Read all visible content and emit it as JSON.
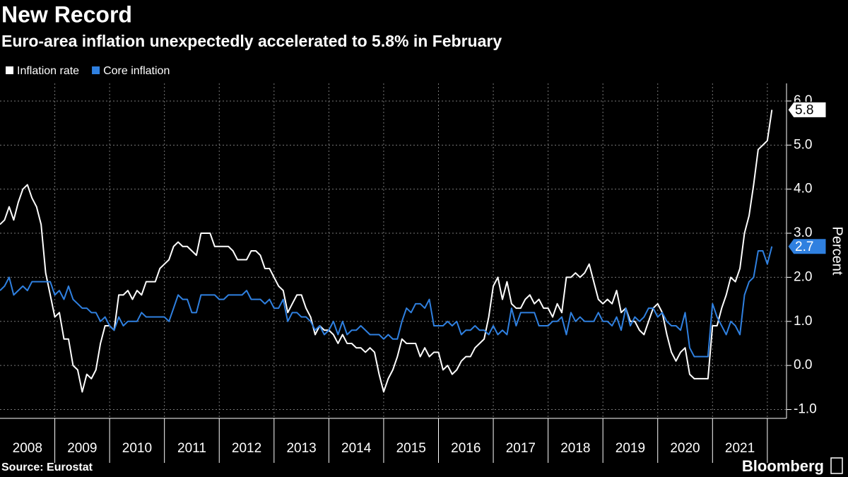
{
  "chart_data": {
    "type": "line",
    "title": "New Record",
    "subtitle": "Euro-area inflation unexpectedly accelerated to 5.8% in February",
    "source": "Source: Eurostat",
    "brand": "Bloomberg",
    "y_label": "Percent",
    "grid": true,
    "xlim": [
      2008.0,
      2022.35
    ],
    "ylim": [
      -1.2,
      6.4
    ],
    "xticks": [
      {
        "value": 2008.5,
        "label": "2008"
      },
      {
        "value": 2009.5,
        "label": "2009"
      },
      {
        "value": 2010.5,
        "label": "2010"
      },
      {
        "value": 2011.5,
        "label": "2011"
      },
      {
        "value": 2012.5,
        "label": "2012"
      },
      {
        "value": 2013.5,
        "label": "2013"
      },
      {
        "value": 2014.5,
        "label": "2014"
      },
      {
        "value": 2015.5,
        "label": "2015"
      },
      {
        "value": 2016.5,
        "label": "2016"
      },
      {
        "value": 2017.5,
        "label": "2017"
      },
      {
        "value": 2018.5,
        "label": "2018"
      },
      {
        "value": 2019.5,
        "label": "2019"
      },
      {
        "value": 2020.5,
        "label": "2020"
      },
      {
        "value": 2021.5,
        "label": "2021"
      }
    ],
    "yticks": [
      {
        "value": -1,
        "label": "-1.0"
      },
      {
        "value": 0,
        "label": "0.0"
      },
      {
        "value": 1,
        "label": "1.0"
      },
      {
        "value": 2,
        "label": "2.0"
      },
      {
        "value": 3,
        "label": "3.0"
      },
      {
        "value": 4,
        "label": "4.0"
      },
      {
        "value": 5,
        "label": "5.0"
      },
      {
        "value": 6,
        "label": "6.0"
      }
    ],
    "x": [
      2008,
      2008.083,
      2008.167,
      2008.25,
      2008.333,
      2008.417,
      2008.5,
      2008.583,
      2008.667,
      2008.75,
      2008.833,
      2008.917,
      2009,
      2009.083,
      2009.167,
      2009.25,
      2009.333,
      2009.417,
      2009.5,
      2009.583,
      2009.667,
      2009.75,
      2009.833,
      2009.917,
      2010,
      2010.083,
      2010.167,
      2010.25,
      2010.333,
      2010.417,
      2010.5,
      2010.583,
      2010.667,
      2010.75,
      2010.833,
      2010.917,
      2011,
      2011.083,
      2011.167,
      2011.25,
      2011.333,
      2011.417,
      2011.5,
      2011.583,
      2011.667,
      2011.75,
      2011.833,
      2011.917,
      2012,
      2012.083,
      2012.167,
      2012.25,
      2012.333,
      2012.417,
      2012.5,
      2012.583,
      2012.667,
      2012.75,
      2012.833,
      2012.917,
      2013,
      2013.083,
      2013.167,
      2013.25,
      2013.333,
      2013.417,
      2013.5,
      2013.583,
      2013.667,
      2013.75,
      2013.833,
      2013.917,
      2014,
      2014.083,
      2014.167,
      2014.25,
      2014.333,
      2014.417,
      2014.5,
      2014.583,
      2014.667,
      2014.75,
      2014.833,
      2014.917,
      2015,
      2015.083,
      2015.167,
      2015.25,
      2015.333,
      2015.417,
      2015.5,
      2015.583,
      2015.667,
      2015.75,
      2015.833,
      2015.917,
      2016,
      2016.083,
      2016.167,
      2016.25,
      2016.333,
      2016.417,
      2016.5,
      2016.583,
      2016.667,
      2016.75,
      2016.833,
      2016.917,
      2017,
      2017.083,
      2017.167,
      2017.25,
      2017.333,
      2017.417,
      2017.5,
      2017.583,
      2017.667,
      2017.75,
      2017.833,
      2017.917,
      2018,
      2018.083,
      2018.167,
      2018.25,
      2018.333,
      2018.417,
      2018.5,
      2018.583,
      2018.667,
      2018.75,
      2018.833,
      2018.917,
      2019,
      2019.083,
      2019.167,
      2019.25,
      2019.333,
      2019.417,
      2019.5,
      2019.583,
      2019.667,
      2019.75,
      2019.833,
      2019.917,
      2020,
      2020.083,
      2020.167,
      2020.25,
      2020.333,
      2020.417,
      2020.5,
      2020.583,
      2020.667,
      2020.75,
      2020.833,
      2020.917,
      2021,
      2021.083,
      2021.167,
      2021.25,
      2021.333,
      2021.417,
      2021.5,
      2021.583,
      2021.667,
      2021.75,
      2021.833,
      2021.917,
      2022,
      2022.083
    ],
    "series": [
      {
        "name": "Inflation rate",
        "color": "#ffffff",
        "values": [
          3.2,
          3.3,
          3.6,
          3.3,
          3.7,
          4.0,
          4.1,
          3.8,
          3.6,
          3.2,
          2.1,
          1.6,
          1.1,
          1.2,
          0.6,
          0.6,
          0.0,
          -0.1,
          -0.6,
          -0.2,
          -0.3,
          -0.1,
          0.5,
          0.9,
          0.9,
          0.8,
          1.6,
          1.6,
          1.7,
          1.5,
          1.7,
          1.6,
          1.9,
          1.9,
          1.9,
          2.2,
          2.3,
          2.4,
          2.7,
          2.8,
          2.7,
          2.7,
          2.6,
          2.5,
          3.0,
          3.0,
          3.0,
          2.7,
          2.7,
          2.7,
          2.7,
          2.6,
          2.4,
          2.4,
          2.4,
          2.6,
          2.6,
          2.5,
          2.2,
          2.2,
          2.0,
          1.8,
          1.7,
          1.2,
          1.4,
          1.6,
          1.6,
          1.3,
          1.1,
          0.7,
          0.9,
          0.8,
          0.8,
          0.7,
          0.5,
          0.7,
          0.5,
          0.5,
          0.4,
          0.4,
          0.3,
          0.4,
          0.3,
          -0.2,
          -0.6,
          -0.3,
          -0.1,
          0.2,
          0.6,
          0.5,
          0.5,
          0.5,
          0.2,
          0.4,
          0.2,
          0.3,
          0.3,
          -0.1,
          0.0,
          -0.2,
          -0.1,
          0.1,
          0.2,
          0.2,
          0.4,
          0.5,
          0.6,
          1.1,
          1.8,
          2.0,
          1.5,
          1.9,
          1.4,
          1.3,
          1.3,
          1.5,
          1.6,
          1.4,
          1.5,
          1.3,
          1.3,
          1.1,
          1.4,
          1.2,
          2.0,
          2.0,
          2.1,
          2.0,
          2.1,
          2.3,
          1.9,
          1.5,
          1.4,
          1.5,
          1.4,
          1.7,
          1.2,
          1.3,
          1.0,
          1.0,
          0.8,
          0.7,
          1.0,
          1.3,
          1.4,
          1.2,
          0.7,
          0.3,
          0.1,
          0.3,
          0.4,
          -0.2,
          -0.3,
          -0.3,
          -0.3,
          -0.3,
          0.9,
          0.9,
          1.3,
          1.6,
          2.0,
          1.9,
          2.2,
          3.0,
          3.4,
          4.1,
          4.9,
          5.0,
          5.1,
          5.8
        ]
      },
      {
        "name": "Core inflation",
        "color": "#2f80e0",
        "values": [
          1.7,
          1.8,
          2.0,
          1.6,
          1.7,
          1.8,
          1.7,
          1.9,
          1.9,
          1.9,
          1.9,
          1.9,
          1.6,
          1.7,
          1.5,
          1.8,
          1.5,
          1.4,
          1.3,
          1.3,
          1.2,
          1.2,
          1.0,
          1.1,
          0.9,
          0.8,
          1.1,
          0.9,
          1.0,
          1.0,
          1.0,
          1.2,
          1.1,
          1.1,
          1.1,
          1.1,
          1.1,
          1.0,
          1.3,
          1.6,
          1.5,
          1.5,
          1.2,
          1.2,
          1.6,
          1.6,
          1.6,
          1.6,
          1.5,
          1.5,
          1.6,
          1.6,
          1.6,
          1.6,
          1.7,
          1.5,
          1.5,
          1.5,
          1.4,
          1.5,
          1.3,
          1.3,
          1.5,
          1.0,
          1.2,
          1.2,
          1.1,
          1.1,
          1.0,
          0.8,
          0.9,
          0.7,
          0.8,
          1.0,
          0.7,
          1.0,
          0.7,
          0.8,
          0.8,
          0.9,
          0.8,
          0.7,
          0.7,
          0.7,
          0.6,
          0.7,
          0.6,
          0.6,
          1.0,
          1.3,
          1.2,
          1.4,
          1.4,
          1.3,
          1.5,
          0.9,
          0.9,
          0.9,
          1.0,
          0.9,
          1.0,
          0.7,
          0.8,
          0.8,
          0.9,
          0.8,
          0.8,
          0.7,
          0.9,
          0.7,
          0.8,
          0.7,
          1.3,
          0.9,
          1.2,
          1.2,
          1.2,
          1.2,
          0.9,
          0.9,
          0.9,
          1.0,
          1.0,
          1.1,
          0.7,
          1.2,
          1.0,
          1.1,
          1.0,
          1.0,
          1.0,
          1.2,
          1.0,
          1.0,
          0.9,
          1.1,
          0.8,
          1.3,
          0.9,
          1.1,
          1.0,
          1.1,
          1.3,
          1.3,
          1.1,
          1.2,
          1.0,
          0.9,
          0.9,
          0.8,
          1.2,
          0.4,
          0.2,
          0.2,
          0.2,
          0.2,
          1.4,
          1.1,
          0.9,
          0.7,
          1.0,
          0.9,
          0.7,
          1.6,
          1.9,
          2.0,
          2.6,
          2.6,
          2.3,
          2.7
        ]
      }
    ]
  }
}
